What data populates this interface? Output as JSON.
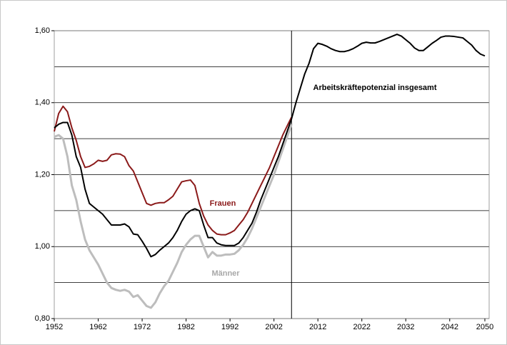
{
  "chart_data": {
    "type": "line",
    "x": [
      1952,
      1953,
      1954,
      1955,
      1956,
      1957,
      1958,
      1959,
      1960,
      1961,
      1962,
      1963,
      1964,
      1965,
      1966,
      1967,
      1968,
      1969,
      1970,
      1971,
      1972,
      1973,
      1974,
      1975,
      1976,
      1977,
      1978,
      1979,
      1980,
      1981,
      1982,
      1983,
      1984,
      1985,
      1986,
      1987,
      1988,
      1989,
      1990,
      1991,
      1992,
      1993,
      1994,
      1995,
      1996,
      1997,
      1998,
      1999,
      2000,
      2001,
      2002,
      2003,
      2004,
      2005,
      2006,
      2007,
      2008,
      2009,
      2010,
      2011,
      2012,
      2013,
      2014,
      2015,
      2016,
      2017,
      2018,
      2019,
      2020,
      2021,
      2022,
      2023,
      2024,
      2025,
      2026,
      2027,
      2028,
      2029,
      2030,
      2031,
      2032,
      2033,
      2034,
      2035,
      2036,
      2037,
      2038,
      2039,
      2040,
      2041,
      2042,
      2043,
      2044,
      2045,
      2046,
      2047,
      2048,
      2049,
      2050
    ],
    "series": [
      {
        "name": "Arbeitskräftepotenzial insgesamt",
        "color": "#000000",
        "values": [
          1.33,
          1.34,
          1.345,
          1.345,
          1.31,
          1.25,
          1.22,
          1.16,
          1.12,
          1.11,
          1.1,
          1.09,
          1.075,
          1.06,
          1.06,
          1.06,
          1.063,
          1.055,
          1.035,
          1.033,
          1.015,
          0.995,
          0.972,
          0.978,
          0.99,
          1.0,
          1.01,
          1.025,
          1.045,
          1.07,
          1.09,
          1.1,
          1.105,
          1.1,
          1.06,
          1.025,
          1.025,
          1.01,
          1.005,
          1.003,
          1.003,
          1.003,
          1.01,
          1.025,
          1.045,
          1.065,
          1.095,
          1.13,
          1.16,
          1.19,
          1.22,
          1.25,
          1.285,
          1.32,
          1.355,
          1.4,
          1.44,
          1.48,
          1.51,
          1.55,
          1.565,
          1.562,
          1.557,
          1.55,
          1.545,
          1.542,
          1.542,
          1.545,
          1.55,
          1.557,
          1.565,
          1.568,
          1.566,
          1.566,
          1.57,
          1.575,
          1.58,
          1.585,
          1.59,
          1.585,
          1.575,
          1.565,
          1.552,
          1.545,
          1.545,
          1.555,
          1.565,
          1.573,
          1.582,
          1.585,
          1.585,
          1.584,
          1.582,
          1.58,
          1.57,
          1.56,
          1.545,
          1.535,
          1.53
        ]
      },
      {
        "name": "Frauen",
        "color": "#8b1a1a",
        "values": [
          1.32,
          1.37,
          1.39,
          1.375,
          1.33,
          1.295,
          1.25,
          1.22,
          1.223,
          1.23,
          1.24,
          1.237,
          1.24,
          1.255,
          1.258,
          1.257,
          1.25,
          1.225,
          1.21,
          1.18,
          1.15,
          1.12,
          1.115,
          1.12,
          1.122,
          1.122,
          1.13,
          1.14,
          1.16,
          1.18,
          1.183,
          1.185,
          1.17,
          1.12,
          1.085,
          1.06,
          1.045,
          1.035,
          1.033,
          1.033,
          1.038,
          1.045,
          1.06,
          1.075,
          1.095,
          1.12,
          1.145,
          1.17,
          1.195,
          1.22,
          1.25,
          1.28,
          1.31,
          1.335,
          1.36,
          null,
          null,
          null,
          null,
          null,
          null,
          null,
          null,
          null,
          null,
          null,
          null,
          null,
          null,
          null,
          null,
          null,
          null,
          null,
          null,
          null,
          null,
          null,
          null,
          null,
          null,
          null,
          null,
          null,
          null,
          null,
          null,
          null,
          null,
          null,
          null,
          null,
          null,
          null,
          null,
          null,
          null,
          null,
          null
        ]
      },
      {
        "name": "Männer",
        "color": "#bdbdbd",
        "values": [
          1.305,
          1.31,
          1.3,
          1.25,
          1.17,
          1.13,
          1.07,
          1.02,
          0.99,
          0.97,
          0.95,
          0.925,
          0.9,
          0.885,
          0.88,
          0.877,
          0.88,
          0.875,
          0.86,
          0.865,
          0.85,
          0.835,
          0.83,
          0.845,
          0.87,
          0.89,
          0.905,
          0.93,
          0.955,
          0.985,
          1.005,
          1.02,
          1.03,
          1.03,
          1.0,
          0.97,
          0.985,
          0.975,
          0.975,
          0.978,
          0.978,
          0.98,
          0.99,
          1.005,
          1.025,
          1.05,
          1.08,
          1.11,
          1.14,
          1.17,
          1.2,
          1.235,
          1.27,
          1.305,
          1.34,
          null,
          null,
          null,
          null,
          null,
          null,
          null,
          null,
          null,
          null,
          null,
          null,
          null,
          null,
          null,
          null,
          null,
          null,
          null,
          null,
          null,
          null,
          null,
          null,
          null,
          null,
          null,
          null,
          null,
          null,
          null,
          null,
          null,
          null,
          null,
          null,
          null,
          null,
          null,
          null,
          null,
          null,
          null,
          null
        ]
      }
    ],
    "xlim": [
      1952,
      2050
    ],
    "xticks": [
      1952,
      1962,
      1972,
      1982,
      1992,
      2002,
      2012,
      2022,
      2032,
      2042,
      2050
    ],
    "ylim": [
      0.8,
      1.6
    ],
    "yticks": [
      {
        "value": 0.8,
        "label": "0,80"
      },
      {
        "value": 1.0,
        "label": "1,00"
      },
      {
        "value": 1.2,
        "label": "1,20"
      },
      {
        "value": 1.4,
        "label": "1,40"
      },
      {
        "value": 1.6,
        "label": "1,60"
      }
    ],
    "minor_grid": [
      0.9,
      1.1,
      1.3,
      1.5
    ],
    "grid": true,
    "divider_x": 2006
  }
}
